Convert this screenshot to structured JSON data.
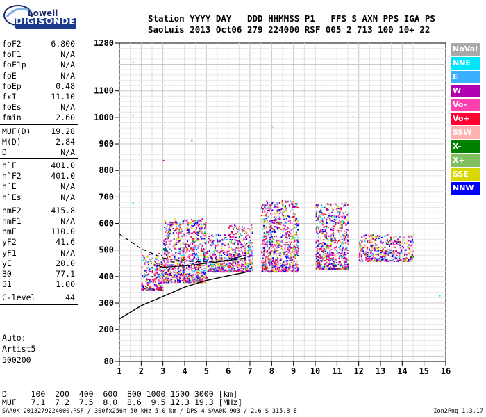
{
  "logo": {
    "top": "Lowell",
    "bottom": "DIGISONDE"
  },
  "header": {
    "labels": "Station YYYY DAY   DDD HHMMSS P1   FFS S AXN PPS IGA PS",
    "values": "SaoLuis 2013 Oct06 279 224000 RSF 005 2 713 100 10+ 22"
  },
  "params": {
    "group1": [
      {
        "name": "foF2",
        "value": "6.800"
      },
      {
        "name": "foF1",
        "value": "N/A"
      },
      {
        "name": "foF1p",
        "value": "N/A"
      },
      {
        "name": "foE",
        "value": "N/A"
      },
      {
        "name": "foEp",
        "value": "0.48"
      },
      {
        "name": "fxI",
        "value": "11.10"
      },
      {
        "name": "foEs",
        "value": "N/A"
      },
      {
        "name": "fmin",
        "value": "2.60"
      }
    ],
    "group2": [
      {
        "name": "MUF(D)",
        "value": "19.28"
      },
      {
        "name": "M(D)",
        "value": "2.84"
      },
      {
        "name": "D",
        "value": "N/A"
      }
    ],
    "group3": [
      {
        "name": "h`F",
        "value": "401.0"
      },
      {
        "name": "h`F2",
        "value": "401.0"
      },
      {
        "name": "h`E",
        "value": "N/A"
      },
      {
        "name": "h`Es",
        "value": "N/A"
      }
    ],
    "group4": [
      {
        "name": "hmF2",
        "value": "415.8"
      },
      {
        "name": "hmF1",
        "value": "N/A"
      },
      {
        "name": "hmE",
        "value": "110.0"
      },
      {
        "name": "yF2",
        "value": "41.6"
      },
      {
        "name": "yF1",
        "value": "N/A"
      },
      {
        "name": "yE",
        "value": "20.0"
      },
      {
        "name": "B0",
        "value": "77.1"
      },
      {
        "name": "B1",
        "value": "1.00"
      }
    ],
    "group5": [
      {
        "name": "C-level",
        "value": "44"
      }
    ]
  },
  "auto": {
    "line1": "Auto:",
    "line2": "Artist5",
    "line3": "500200"
  },
  "muf_table": {
    "d_row": "D     100  200  400  600  800 1000 1500 3000 [km]",
    "muf_row": "MUF   7.1  7.2  7.5  8.0  8.6  9.5 12.3 19.3 [MHz]"
  },
  "footer": {
    "left": "SAA0K_2013279224000.RSF / 300fx256h 50 kHz 5.0 km / DPS-4 SAA0K 903 / 2.6 S 315.8 E",
    "right": "Ion2Png 1.3.17"
  },
  "legend": [
    {
      "label": "NoVal",
      "color": "#aaaaaa"
    },
    {
      "label": "NNE",
      "color": "#00e5ff"
    },
    {
      "label": "E",
      "color": "#3ab0ff"
    },
    {
      "label": "W",
      "color": "#b000b0"
    },
    {
      "label": "Vo-",
      "color": "#ff40b0"
    },
    {
      "label": "Vo+",
      "color": "#ff0030"
    },
    {
      "label": "SSW",
      "color": "#ffb0b0"
    },
    {
      "label": "X-",
      "color": "#008000"
    },
    {
      "label": "X+",
      "color": "#80c060"
    },
    {
      "label": "SSE",
      "color": "#d8d800"
    },
    {
      "label": "NNW",
      "color": "#0000ff"
    }
  ],
  "chart_data": {
    "type": "scatter",
    "title": "",
    "xlabel": "",
    "ylabel": "",
    "xlim": [
      1,
      16
    ],
    "ylim": [
      80,
      1280
    ],
    "x_ticks": [
      "1",
      "2",
      "3",
      "4",
      "5",
      "6",
      "7",
      "8",
      "9",
      "10",
      "11",
      "12",
      "13",
      "14",
      "15",
      "16"
    ],
    "y_ticks": [
      {
        "value": 80,
        "label": "80"
      },
      {
        "value": 200,
        "label": "200"
      },
      {
        "value": 300,
        "label": "300"
      },
      {
        "value": 400,
        "label": "400"
      },
      {
        "value": 500,
        "label": "500"
      },
      {
        "value": 600,
        "label": "600"
      },
      {
        "value": 700,
        "label": "700"
      },
      {
        "value": 800,
        "label": "800"
      },
      {
        "value": 900,
        "label": "900"
      },
      {
        "value": 1000,
        "label": "1000"
      },
      {
        "value": 1100,
        "label": "1100"
      },
      {
        "value": 1280,
        "label": "1280"
      }
    ],
    "grid": true,
    "echo_clusters": [
      {
        "f_min": 2.0,
        "f_max": 3.0,
        "h_min": 350,
        "h_max": 490
      },
      {
        "f_min": 3.0,
        "f_max": 5.0,
        "h_min": 380,
        "h_max": 620
      },
      {
        "f_min": 5.0,
        "f_max": 6.0,
        "h_min": 420,
        "h_max": 560
      },
      {
        "f_min": 6.0,
        "f_max": 7.1,
        "h_min": 420,
        "h_max": 600
      },
      {
        "f_min": 7.5,
        "f_max": 9.2,
        "h_min": 420,
        "h_max": 690
      },
      {
        "f_min": 10.0,
        "f_max": 11.5,
        "h_min": 430,
        "h_max": 680
      },
      {
        "f_min": 12.0,
        "f_max": 14.5,
        "h_min": 460,
        "h_max": 560
      }
    ],
    "trace_dashed": [
      {
        "f": 1.0,
        "h": 560
      },
      {
        "f": 2.0,
        "h": 505
      },
      {
        "f": 3.0,
        "h": 470
      },
      {
        "f": 4.0,
        "h": 458
      },
      {
        "f": 5.0,
        "h": 455
      },
      {
        "f": 6.0,
        "h": 462
      },
      {
        "f": 6.8,
        "h": 480
      }
    ],
    "trace_lower": [
      {
        "f": 2.6,
        "h": 445
      },
      {
        "f": 3.0,
        "h": 435
      },
      {
        "f": 4.0,
        "h": 440
      },
      {
        "f": 5.0,
        "h": 450
      },
      {
        "f": 6.0,
        "h": 460
      },
      {
        "f": 6.8,
        "h": 470
      }
    ],
    "profile": [
      {
        "f": 1.0,
        "h": 240
      },
      {
        "f": 2.0,
        "h": 290
      },
      {
        "f": 3.0,
        "h": 325
      },
      {
        "f": 4.0,
        "h": 360
      },
      {
        "f": 5.0,
        "h": 385
      },
      {
        "f": 6.0,
        "h": 403
      },
      {
        "f": 6.8,
        "h": 415.8
      }
    ],
    "outliers": [
      {
        "f": 1.6,
        "h": 1210,
        "c": "#3ab0ff"
      },
      {
        "f": 1.6,
        "h": 1010,
        "c": "#3ab0ff"
      },
      {
        "f": 8.0,
        "h": 965,
        "c": "#ffb0b0"
      },
      {
        "f": 11.7,
        "h": 1005,
        "c": "#ffb0b0"
      },
      {
        "f": 15.7,
        "h": 330,
        "c": "#00e5ff"
      },
      {
        "f": 1.6,
        "h": 680,
        "c": "#00e5ff"
      },
      {
        "f": 1.6,
        "h": 590,
        "c": "#d8d800"
      },
      {
        "f": 3.0,
        "h": 840,
        "c": "#b000b0"
      },
      {
        "f": 4.3,
        "h": 915,
        "c": "#b000b0"
      },
      {
        "f": 10.3,
        "h": 620,
        "c": "#00e5ff"
      }
    ]
  }
}
